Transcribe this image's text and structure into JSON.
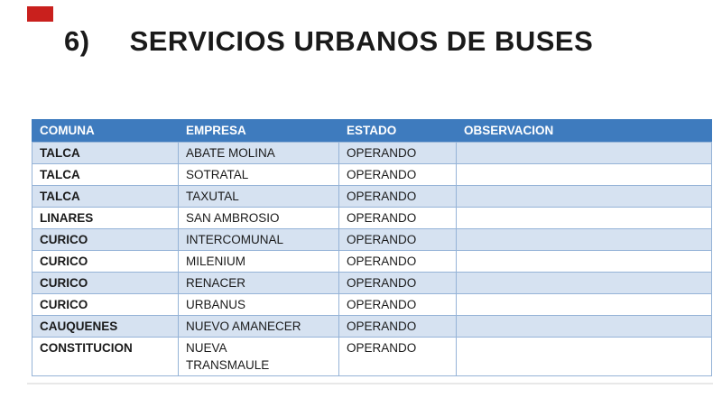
{
  "title": {
    "number": "6)",
    "text": "SERVICIOS URBANOS DE BUSES"
  },
  "marker": {
    "color": "#C9201D"
  },
  "table": {
    "columns": [
      "COMUNA",
      "EMPRESA",
      "ESTADO",
      "OBSERVACION"
    ],
    "rows": [
      {
        "comuna": "TALCA",
        "empresa": "ABATE MOLINA",
        "estado": "OPERANDO",
        "observacion": ""
      },
      {
        "comuna": "TALCA",
        "empresa": "SOTRATAL",
        "estado": "OPERANDO",
        "observacion": ""
      },
      {
        "comuna": "TALCA",
        "empresa": "TAXUTAL",
        "estado": "OPERANDO",
        "observacion": ""
      },
      {
        "comuna": "LINARES",
        "empresa": "SAN AMBROSIO",
        "estado": "OPERANDO",
        "observacion": ""
      },
      {
        "comuna": "CURICO",
        "empresa": "INTERCOMUNAL",
        "estado": "OPERANDO",
        "observacion": ""
      },
      {
        "comuna": "CURICO",
        "empresa": "MILENIUM",
        "estado": "OPERANDO",
        "observacion": ""
      },
      {
        "comuna": "CURICO",
        "empresa": "RENACER",
        "estado": "OPERANDO",
        "observacion": ""
      },
      {
        "comuna": "CURICO",
        "empresa": "URBANUS",
        "estado": "OPERANDO",
        "observacion": ""
      },
      {
        "comuna": "CAUQUENES",
        "empresa": "NUEVO AMANECER",
        "estado": "OPERANDO",
        "observacion": ""
      },
      {
        "comuna": "CONSTITUCION",
        "empresa": "NUEVA\nTRANSMAULE",
        "estado": "OPERANDO",
        "observacion": ""
      }
    ],
    "colors": {
      "header_bg": "#3E7BBE",
      "header_text": "#FFFFFF",
      "band_bg": "#D6E2F1",
      "border": "#95B3D7"
    }
  }
}
